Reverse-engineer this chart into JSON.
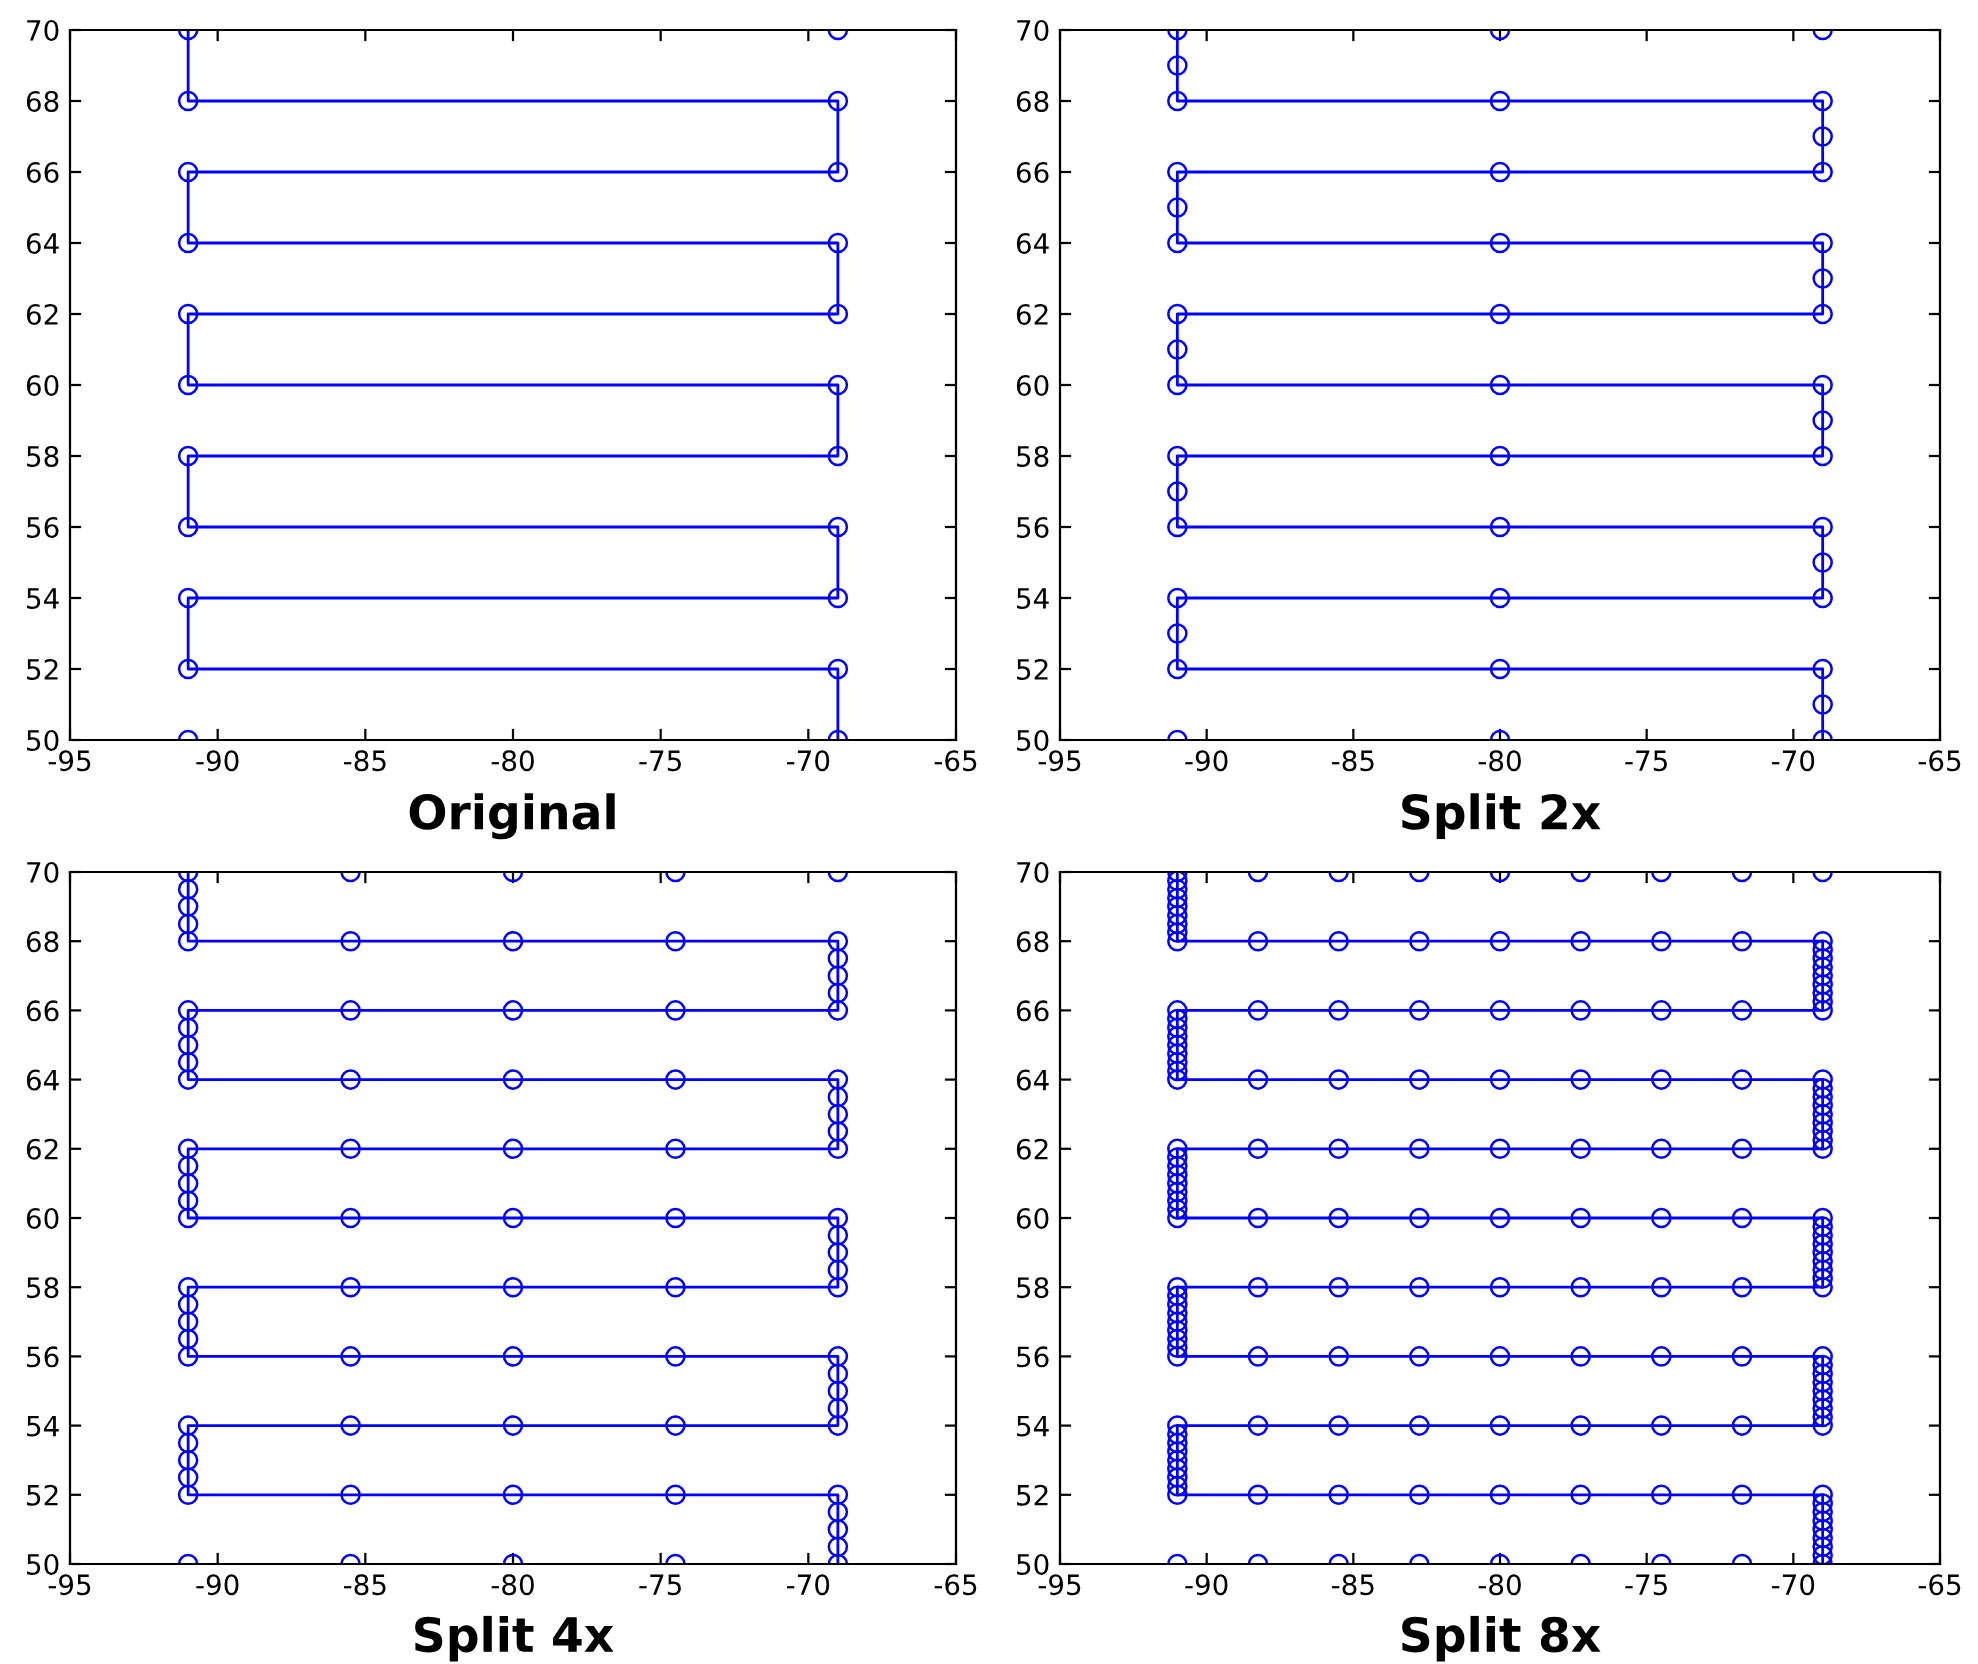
{
  "chart_data": [
    {
      "type": "line",
      "title": "Original",
      "xlim": [
        -95,
        -65
      ],
      "ylim": [
        50,
        70
      ],
      "xticks": [
        -95,
        -90,
        -85,
        -80,
        -75,
        -70,
        -65
      ],
      "yticks": [
        50,
        52,
        54,
        56,
        58,
        60,
        62,
        64,
        66,
        68,
        70
      ],
      "series": [
        {
          "type": "line",
          "color": "#0000ff",
          "marker": "circle",
          "line_style": "solid",
          "x": [
            -91,
            -91,
            -69,
            -69,
            -91,
            -91,
            -69,
            -69,
            -91,
            -91,
            -69,
            -69,
            -91,
            -91,
            -69,
            -69,
            -91,
            -91,
            -69,
            -69
          ],
          "values": [
            70,
            68,
            68,
            66,
            66,
            64,
            64,
            62,
            62,
            60,
            60,
            58,
            58,
            56,
            56,
            54,
            54,
            52,
            52,
            50
          ]
        },
        {
          "type": "scatter",
          "color": "#0000ff",
          "marker": "circle",
          "x": [
            -69,
            -91
          ],
          "values": [
            70,
            50
          ]
        }
      ]
    },
    {
      "type": "line",
      "title": "Split 2x",
      "xlim": [
        -95,
        -65
      ],
      "ylim": [
        50,
        70
      ],
      "xticks": [
        -95,
        -90,
        -85,
        -80,
        -75,
        -70,
        -65
      ],
      "yticks": [
        50,
        52,
        54,
        56,
        58,
        60,
        62,
        64,
        66,
        68,
        70
      ],
      "series": [
        {
          "type": "line",
          "color": "#0000ff",
          "marker": "circle",
          "line_style": "solid",
          "x": [
            -91,
            -91,
            -91,
            -80,
            -69,
            -69,
            -69,
            -80,
            -91,
            -91,
            -91,
            -80,
            -69,
            -69,
            -69,
            -80,
            -91,
            -91,
            -91,
            -80,
            -69,
            -69,
            -69,
            -80,
            -91,
            -91,
            -91,
            -80,
            -69,
            -69,
            -69,
            -80,
            -91,
            -91,
            -91,
            -80,
            -69,
            -69,
            -69
          ],
          "values": [
            70,
            69,
            68,
            68,
            68,
            67,
            66,
            66,
            66,
            65,
            64,
            64,
            64,
            63,
            62,
            62,
            62,
            61,
            60,
            60,
            60,
            59,
            58,
            58,
            58,
            57,
            56,
            56,
            56,
            55,
            54,
            54,
            54,
            53,
            52,
            52,
            52,
            51,
            50
          ]
        },
        {
          "type": "scatter",
          "color": "#0000ff",
          "marker": "circle",
          "x": [
            -80,
            -69,
            -91,
            -80
          ],
          "values": [
            70,
            70,
            50,
            50
          ]
        }
      ]
    },
    {
      "type": "line",
      "title": "Split 4x",
      "xlim": [
        -95,
        -65
      ],
      "ylim": [
        50,
        70
      ],
      "xticks": [
        -95,
        -90,
        -85,
        -80,
        -75,
        -70,
        -65
      ],
      "yticks": [
        50,
        52,
        54,
        56,
        58,
        60,
        62,
        64,
        66,
        68,
        70
      ],
      "series": [
        {
          "type": "line",
          "color": "#0000ff",
          "marker": "circle",
          "line_style": "solid",
          "x": [
            -91,
            -91,
            -91,
            -91,
            -91,
            -85.5,
            -80,
            -74.5,
            -69,
            -69,
            -69,
            -69,
            -69,
            -74.5,
            -80,
            -85.5,
            -91,
            -91,
            -91,
            -91,
            -91,
            -85.5,
            -80,
            -74.5,
            -69,
            -69,
            -69,
            -69,
            -69,
            -74.5,
            -80,
            -85.5,
            -91,
            -91,
            -91,
            -91,
            -91,
            -85.5,
            -80,
            -74.5,
            -69,
            -69,
            -69,
            -69,
            -69,
            -74.5,
            -80,
            -85.5,
            -91,
            -91,
            -91,
            -91,
            -91,
            -85.5,
            -80,
            -74.5,
            -69,
            -69,
            -69,
            -69,
            -69,
            -74.5,
            -80,
            -85.5,
            -91,
            -91,
            -91,
            -91,
            -91,
            -85.5,
            -80,
            -74.5,
            -69,
            -69,
            -69,
            -69,
            -69
          ],
          "values": [
            70,
            69.5,
            69,
            68.5,
            68,
            68,
            68,
            68,
            68,
            67.5,
            67,
            66.5,
            66,
            66,
            66,
            66,
            66,
            65.5,
            65,
            64.5,
            64,
            64,
            64,
            64,
            64,
            63.5,
            63,
            62.5,
            62,
            62,
            62,
            62,
            62,
            61.5,
            61,
            60.5,
            60,
            60,
            60,
            60,
            60,
            59.5,
            59,
            58.5,
            58,
            58,
            58,
            58,
            58,
            57.5,
            57,
            56.5,
            56,
            56,
            56,
            56,
            56,
            55.5,
            55,
            54.5,
            54,
            54,
            54,
            54,
            54,
            53.5,
            53,
            52.5,
            52,
            52,
            52,
            52,
            52,
            51.5,
            51,
            50.5,
            50
          ]
        },
        {
          "type": "scatter",
          "color": "#0000ff",
          "marker": "circle",
          "x": [
            -85.5,
            -80,
            -74.5,
            -69,
            -91,
            -85.5,
            -80,
            -74.5
          ],
          "values": [
            70,
            70,
            70,
            70,
            50,
            50,
            50,
            50
          ]
        }
      ]
    },
    {
      "type": "line",
      "title": "Split 8x",
      "xlim": [
        -95,
        -65
      ],
      "ylim": [
        50,
        70
      ],
      "xticks": [
        -95,
        -90,
        -85,
        -80,
        -75,
        -70,
        -65
      ],
      "yticks": [
        50,
        52,
        54,
        56,
        58,
        60,
        62,
        64,
        66,
        68,
        70
      ],
      "series": [
        {
          "type": "line",
          "color": "#0000ff",
          "marker": "circle",
          "line_style": "solid",
          "x": [
            -91,
            -91,
            -91,
            -91,
            -91,
            -91,
            -91,
            -91,
            -91,
            -88.25,
            -85.5,
            -82.75,
            -80,
            -77.25,
            -74.5,
            -71.75,
            -69,
            -69,
            -69,
            -69,
            -69,
            -69,
            -69,
            -69,
            -69,
            -71.75,
            -74.5,
            -77.25,
            -80,
            -82.75,
            -85.5,
            -88.25,
            -91,
            -91,
            -91,
            -91,
            -91,
            -91,
            -91,
            -91,
            -91,
            -88.25,
            -85.5,
            -82.75,
            -80,
            -77.25,
            -74.5,
            -71.75,
            -69,
            -69,
            -69,
            -69,
            -69,
            -69,
            -69,
            -69,
            -69,
            -71.75,
            -74.5,
            -77.25,
            -80,
            -82.75,
            -85.5,
            -88.25,
            -91,
            -91,
            -91,
            -91,
            -91,
            -91,
            -91,
            -91,
            -91,
            -88.25,
            -85.5,
            -82.75,
            -80,
            -77.25,
            -74.5,
            -71.75,
            -69,
            -69,
            -69,
            -69,
            -69,
            -69,
            -69,
            -69,
            -69,
            -71.75,
            -74.5,
            -77.25,
            -80,
            -82.75,
            -85.5,
            -88.25,
            -91,
            -91,
            -91,
            -91,
            -91,
            -91,
            -91,
            -91,
            -91,
            -88.25,
            -85.5,
            -82.75,
            -80,
            -77.25,
            -74.5,
            -71.75,
            -69,
            -69,
            -69,
            -69,
            -69,
            -69,
            -69,
            -69,
            -69,
            -71.75,
            -74.5,
            -77.25,
            -80,
            -82.75,
            -85.5,
            -88.25,
            -91,
            -91,
            -91,
            -91,
            -91,
            -91,
            -91,
            -91,
            -91,
            -88.25,
            -85.5,
            -82.75,
            -80,
            -77.25,
            -74.5,
            -71.75,
            -69,
            -69,
            -69,
            -69,
            -69,
            -69,
            -69,
            -69,
            -69
          ],
          "values": [
            70,
            69.75,
            69.5,
            69.25,
            69,
            68.75,
            68.5,
            68.25,
            68,
            68,
            68,
            68,
            68,
            68,
            68,
            68,
            68,
            67.75,
            67.5,
            67.25,
            67,
            66.75,
            66.5,
            66.25,
            66,
            66,
            66,
            66,
            66,
            66,
            66,
            66,
            66,
            65.75,
            65.5,
            65.25,
            65,
            64.75,
            64.5,
            64.25,
            64,
            64,
            64,
            64,
            64,
            64,
            64,
            64,
            64,
            63.75,
            63.5,
            63.25,
            63,
            62.75,
            62.5,
            62.25,
            62,
            62,
            62,
            62,
            62,
            62,
            62,
            62,
            62,
            61.75,
            61.5,
            61.25,
            61,
            60.75,
            60.5,
            60.25,
            60,
            60,
            60,
            60,
            60,
            60,
            60,
            60,
            60,
            59.75,
            59.5,
            59.25,
            59,
            58.75,
            58.5,
            58.25,
            58,
            58,
            58,
            58,
            58,
            58,
            58,
            58,
            58,
            57.75,
            57.5,
            57.25,
            57,
            56.75,
            56.5,
            56.25,
            56,
            56,
            56,
            56,
            56,
            56,
            56,
            56,
            56,
            55.75,
            55.5,
            55.25,
            55,
            54.75,
            54.5,
            54.25,
            54,
            54,
            54,
            54,
            54,
            54,
            54,
            54,
            54,
            53.75,
            53.5,
            53.25,
            53,
            52.75,
            52.5,
            52.25,
            52,
            52,
            52,
            52,
            52,
            52,
            52,
            52,
            52,
            51.75,
            51.5,
            51.25,
            51,
            50.75,
            50.5,
            50.25,
            50
          ]
        },
        {
          "type": "scatter",
          "color": "#0000ff",
          "marker": "circle",
          "x": [
            -88.25,
            -85.5,
            -82.75,
            -80,
            -77.25,
            -74.5,
            -71.75,
            -69,
            -91,
            -88.25,
            -85.5,
            -82.75,
            -80,
            -77.25,
            -74.5,
            -71.75
          ],
          "values": [
            70,
            70,
            70,
            70,
            70,
            70,
            70,
            70,
            50,
            50,
            50,
            50,
            50,
            50,
            50,
            50
          ]
        }
      ]
    }
  ]
}
